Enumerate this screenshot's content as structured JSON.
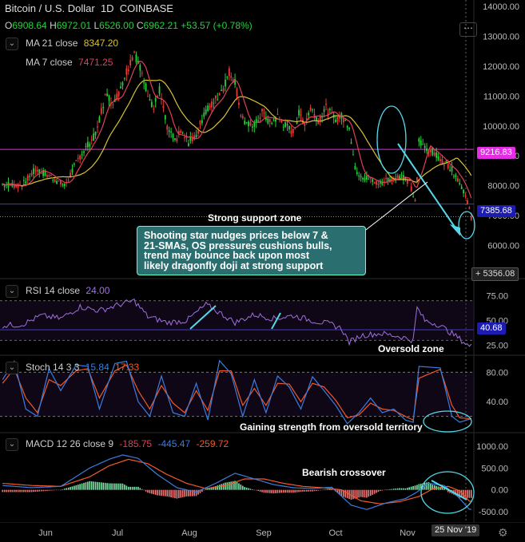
{
  "header": {
    "title": "Bitcoin / U.S. Dollar",
    "interval": "1D",
    "exchange": "COINBASE",
    "ohlc": {
      "o": "6908.64",
      "h": "6972.01",
      "l": "6526.00",
      "c": "6962.21",
      "change": "+53.57 (+0.78%)"
    }
  },
  "indicators": {
    "ma21": {
      "label": "MA 21 close",
      "value": "8347.20",
      "color": "#d9c233"
    },
    "ma7": {
      "label": "MA 7 close",
      "value": "7471.25",
      "color": "#e0405a"
    },
    "rsi": {
      "label": "RSI 14 close",
      "value": "24.00",
      "color": "#a070e0"
    },
    "stoch": {
      "label": "Stoch 14 3 3",
      "k": "15.84",
      "d": "17.33",
      "k_color": "#3a7de0",
      "d_color": "#f2592a"
    },
    "macd": {
      "label": "MACD 12 26 close 9",
      "hist": "-185.75",
      "macd": "-445.47",
      "signal": "-259.72"
    }
  },
  "price_tags": {
    "resistance": "9216.83",
    "support": "7385.68",
    "last": "5356.08"
  },
  "annotations": {
    "support_zone": "Strong support zone",
    "callout": "Shooting star nudges prices below 7 &\n21-SMAs, OS pressures cushions bulls,\ntrend may bounce back upon most\nlikely dragonfly doji at strong support",
    "rsi_zone": "Oversold zone",
    "stoch_note": "Gaining strength from oversold territory",
    "macd_note": "Bearish crossover"
  },
  "xaxis": {
    "months": [
      "Jun",
      "Jul",
      "Aug",
      "Sep",
      "Oct",
      "Nov"
    ],
    "date_badge": "25 Nov '19"
  },
  "colors": {
    "up": "#26d13b",
    "down": "#e83b3b",
    "resistance": "#e32ee3",
    "support_line": "#3a3ae8",
    "annotation": "#55d8e8"
  },
  "chart_data": [
    {
      "type": "candlestick",
      "title": "Bitcoin / U.S. Dollar, 1D, COINBASE",
      "ylim": [
        5000,
        14000
      ],
      "yticks": [
        6000,
        7000,
        8000,
        9000,
        10000,
        11000,
        12000,
        13000,
        14000
      ],
      "anchors": [
        [
          0,
          8050
        ],
        [
          10,
          8000
        ],
        [
          17,
          8550
        ],
        [
          25,
          8300
        ],
        [
          32,
          8000
        ],
        [
          40,
          9000
        ],
        [
          48,
          9700
        ],
        [
          53,
          11000
        ],
        [
          58,
          10800
        ],
        [
          62,
          11500
        ],
        [
          68,
          12500
        ],
        [
          74,
          11300
        ],
        [
          78,
          10600
        ],
        [
          81,
          11200
        ],
        [
          85,
          9900
        ],
        [
          89,
          9500
        ],
        [
          92,
          9800
        ],
        [
          96,
          9450
        ],
        [
          100,
          9700
        ],
        [
          104,
          10400
        ],
        [
          109,
          10800
        ],
        [
          114,
          11300
        ],
        [
          117,
          11800
        ],
        [
          120,
          11500
        ],
        [
          123,
          10400
        ],
        [
          126,
          10000
        ],
        [
          131,
          10100
        ],
        [
          134,
          10450
        ],
        [
          138,
          10100
        ],
        [
          142,
          10300
        ],
        [
          146,
          10000
        ],
        [
          150,
          9800
        ],
        [
          153,
          10400
        ],
        [
          156,
          10100
        ],
        [
          159,
          10600
        ],
        [
          163,
          10200
        ],
        [
          167,
          10600
        ],
        [
          171,
          10250
        ],
        [
          175,
          10300
        ],
        [
          179,
          10000
        ],
        [
          182,
          8550
        ],
        [
          186,
          8300
        ],
        [
          190,
          8200
        ],
        [
          194,
          8050
        ],
        [
          198,
          8200
        ],
        [
          202,
          8250
        ],
        [
          206,
          8350
        ],
        [
          210,
          8100
        ],
        [
          213,
          7450
        ],
        [
          214,
          8200
        ],
        [
          215,
          9500
        ],
        [
          218,
          9300
        ],
        [
          222,
          9150
        ],
        [
          226,
          8850
        ],
        [
          230,
          8700
        ],
        [
          234,
          8350
        ],
        [
          238,
          7850
        ],
        [
          241,
          7200
        ],
        [
          242,
          6950
        ]
      ],
      "ma21_label": "MA 21 close",
      "ma7_label": "MA 7 close"
    },
    {
      "type": "line",
      "title": "RSI 14 close",
      "ylim": [
        15,
        90
      ],
      "yticks": [
        25,
        50,
        75
      ],
      "values": [
        [
          0,
          45
        ],
        [
          10,
          46
        ],
        [
          20,
          55
        ],
        [
          30,
          52
        ],
        [
          40,
          64
        ],
        [
          50,
          60
        ],
        [
          60,
          66
        ],
        [
          68,
          70
        ],
        [
          75,
          54
        ],
        [
          85,
          48
        ],
        [
          95,
          50
        ],
        [
          105,
          66
        ],
        [
          112,
          58
        ],
        [
          120,
          48
        ],
        [
          130,
          56
        ],
        [
          140,
          52
        ],
        [
          150,
          55
        ],
        [
          160,
          50
        ],
        [
          170,
          46
        ],
        [
          175,
          42
        ],
        [
          179,
          28
        ],
        [
          185,
          35
        ],
        [
          195,
          37
        ],
        [
          205,
          34
        ],
        [
          212,
          30
        ],
        [
          214,
          63
        ],
        [
          218,
          50
        ],
        [
          225,
          46
        ],
        [
          235,
          33
        ],
        [
          241,
          24
        ]
      ]
    },
    {
      "type": "line",
      "title": "Stoch 14 3 3",
      "ylim": [
        0,
        100
      ],
      "yticks": [
        40,
        80
      ],
      "k": [
        [
          0,
          70
        ],
        [
          6,
          95
        ],
        [
          12,
          30
        ],
        [
          18,
          20
        ],
        [
          24,
          85
        ],
        [
          30,
          55
        ],
        [
          38,
          90
        ],
        [
          44,
          88
        ],
        [
          50,
          30
        ],
        [
          58,
          92
        ],
        [
          64,
          95
        ],
        [
          70,
          40
        ],
        [
          76,
          20
        ],
        [
          82,
          75
        ],
        [
          88,
          25
        ],
        [
          94,
          20
        ],
        [
          100,
          65
        ],
        [
          106,
          15
        ],
        [
          112,
          96
        ],
        [
          118,
          78
        ],
        [
          124,
          20
        ],
        [
          130,
          70
        ],
        [
          136,
          25
        ],
        [
          142,
          75
        ],
        [
          148,
          60
        ],
        [
          154,
          30
        ],
        [
          160,
          74
        ],
        [
          166,
          55
        ],
        [
          172,
          35
        ],
        [
          178,
          10
        ],
        [
          184,
          25
        ],
        [
          190,
          45
        ],
        [
          196,
          25
        ],
        [
          202,
          30
        ],
        [
          208,
          15
        ],
        [
          212,
          12
        ],
        [
          215,
          88
        ],
        [
          226,
          86
        ],
        [
          232,
          20
        ],
        [
          236,
          12
        ],
        [
          241,
          16
        ]
      ],
      "d": [
        [
          0,
          65
        ],
        [
          6,
          85
        ],
        [
          12,
          45
        ],
        [
          18,
          25
        ],
        [
          24,
          70
        ],
        [
          30,
          62
        ],
        [
          38,
          82
        ],
        [
          44,
          85
        ],
        [
          50,
          45
        ],
        [
          58,
          82
        ],
        [
          64,
          90
        ],
        [
          70,
          55
        ],
        [
          76,
          30
        ],
        [
          82,
          62
        ],
        [
          88,
          38
        ],
        [
          94,
          25
        ],
        [
          100,
          55
        ],
        [
          106,
          28
        ],
        [
          112,
          82
        ],
        [
          118,
          82
        ],
        [
          124,
          35
        ],
        [
          130,
          58
        ],
        [
          136,
          35
        ],
        [
          142,
          65
        ],
        [
          148,
          64
        ],
        [
          154,
          40
        ],
        [
          160,
          65
        ],
        [
          166,
          60
        ],
        [
          172,
          42
        ],
        [
          178,
          18
        ],
        [
          184,
          22
        ],
        [
          190,
          38
        ],
        [
          196,
          30
        ],
        [
          202,
          28
        ],
        [
          208,
          20
        ],
        [
          212,
          15
        ],
        [
          215,
          72
        ],
        [
          226,
          84
        ],
        [
          232,
          35
        ],
        [
          236,
          18
        ],
        [
          241,
          17
        ]
      ]
    },
    {
      "type": "line",
      "title": "MACD 12 26 close 9",
      "ylim": [
        -700,
        1200
      ],
      "yticks": [
        -500,
        0,
        500,
        1000
      ],
      "macd": [
        [
          0,
          100
        ],
        [
          15,
          50
        ],
        [
          30,
          80
        ],
        [
          45,
          500
        ],
        [
          55,
          700
        ],
        [
          62,
          800
        ],
        [
          70,
          720
        ],
        [
          80,
          350
        ],
        [
          90,
          50
        ],
        [
          100,
          -50
        ],
        [
          110,
          150
        ],
        [
          120,
          380
        ],
        [
          130,
          250
        ],
        [
          140,
          120
        ],
        [
          150,
          50
        ],
        [
          160,
          30
        ],
        [
          170,
          60
        ],
        [
          180,
          -350
        ],
        [
          188,
          -450
        ],
        [
          198,
          -300
        ],
        [
          208,
          -200
        ],
        [
          214,
          -50
        ],
        [
          220,
          150
        ],
        [
          228,
          100
        ],
        [
          235,
          -150
        ],
        [
          241,
          -445
        ]
      ],
      "signal": [
        [
          0,
          150
        ],
        [
          15,
          100
        ],
        [
          30,
          80
        ],
        [
          45,
          300
        ],
        [
          55,
          550
        ],
        [
          65,
          700
        ],
        [
          75,
          600
        ],
        [
          85,
          350
        ],
        [
          95,
          150
        ],
        [
          105,
          30
        ],
        [
          115,
          100
        ],
        [
          125,
          250
        ],
        [
          135,
          250
        ],
        [
          145,
          150
        ],
        [
          155,
          80
        ],
        [
          165,
          50
        ],
        [
          175,
          0
        ],
        [
          185,
          -250
        ],
        [
          195,
          -320
        ],
        [
          205,
          -270
        ],
        [
          215,
          -150
        ],
        [
          222,
          20
        ],
        [
          230,
          80
        ],
        [
          236,
          -20
        ],
        [
          241,
          -260
        ]
      ]
    }
  ]
}
